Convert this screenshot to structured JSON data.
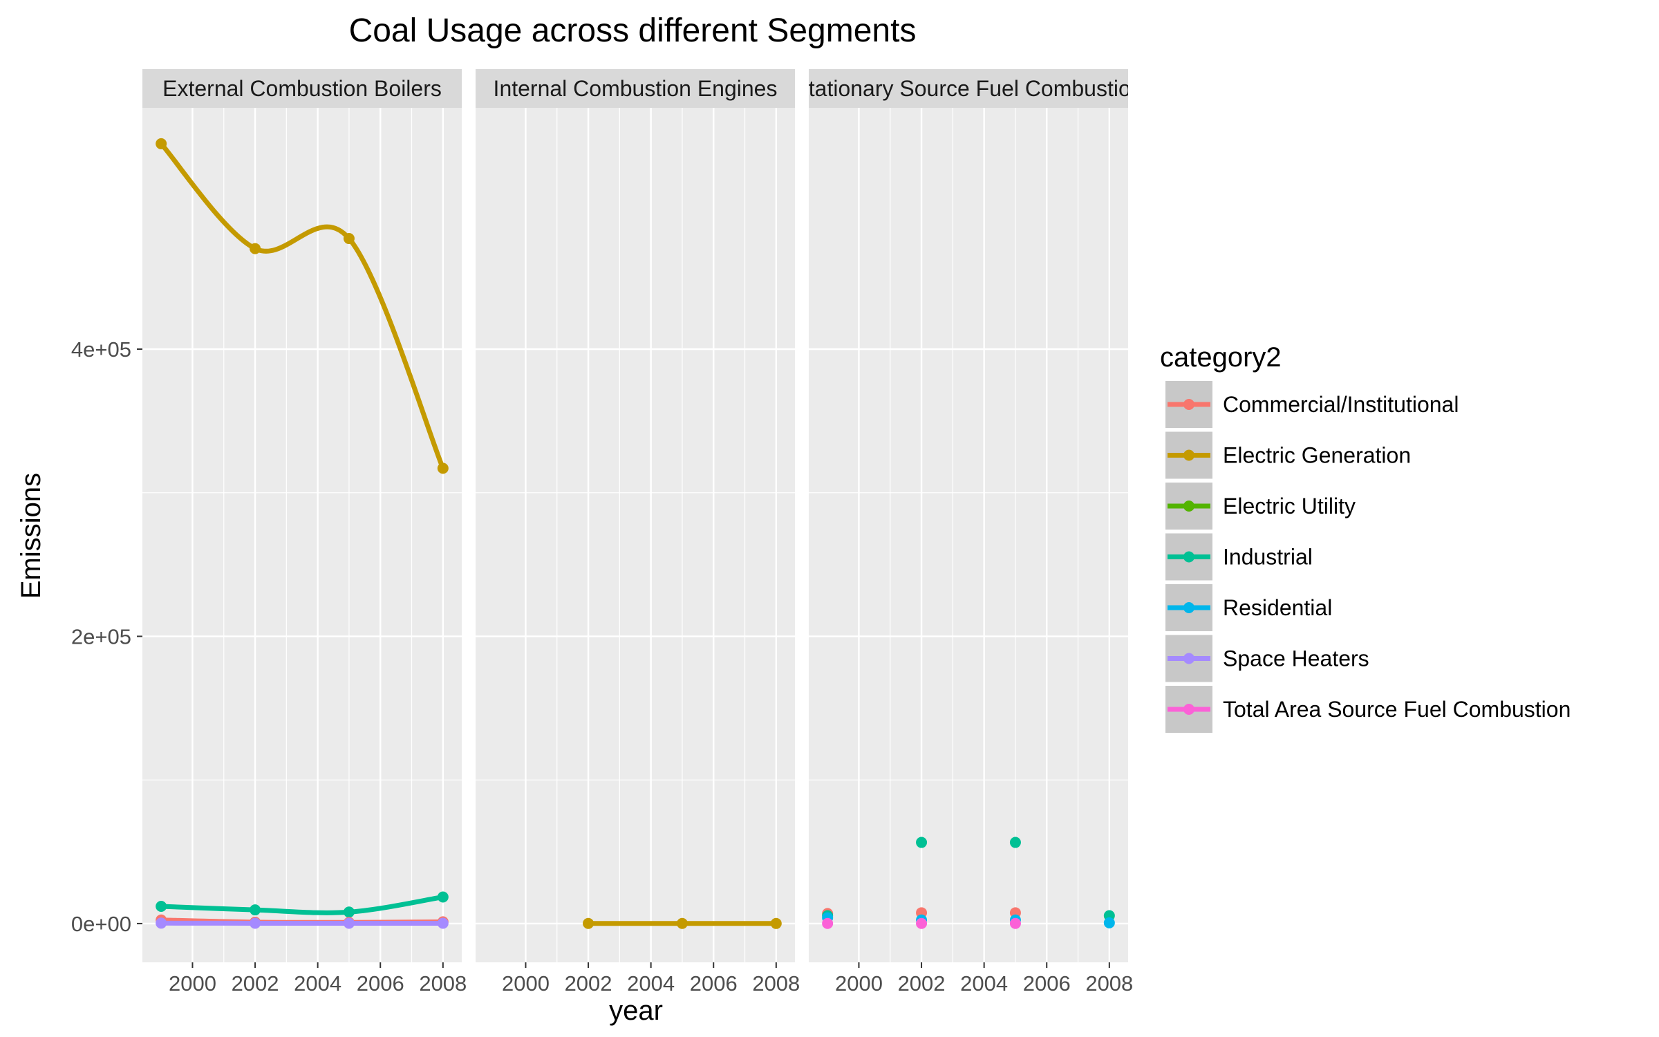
{
  "chart_data": {
    "type": "line",
    "title": "Coal Usage across different Segments",
    "xlabel": "year",
    "ylabel": "Emissions",
    "xlim": [
      1998.4,
      2008.6
    ],
    "ylim": [
      -27000,
      568000
    ],
    "xticks": [
      2000,
      2002,
      2004,
      2006,
      2008
    ],
    "yticks": [
      0,
      200000,
      400000
    ],
    "ytick_labels": [
      "0e+00",
      "2e+05",
      "4e+05"
    ],
    "grid": true,
    "legend_title": "category2",
    "legend_position": "right",
    "categories": [
      {
        "name": "Commercial/Institutional",
        "color": "#F8766D"
      },
      {
        "name": "Electric Generation",
        "color": "#C49A00"
      },
      {
        "name": "Electric Utility",
        "color": "#53B400"
      },
      {
        "name": "Industrial",
        "color": "#00C094"
      },
      {
        "name": "Residential",
        "color": "#00B6EB"
      },
      {
        "name": "Space Heaters",
        "color": "#A58AFF"
      },
      {
        "name": "Total Area Source Fuel Combustion",
        "color": "#FB61D7"
      }
    ],
    "panels": [
      {
        "strip": "External Combustion Boilers",
        "series": [
          {
            "name": "Electric Generation",
            "x": [
              1999,
              2002,
              2005,
              2008
            ],
            "y": [
              543000,
              470000,
              477000,
              317000
            ]
          },
          {
            "name": "Industrial",
            "x": [
              1999,
              2002,
              2005,
              2008
            ],
            "y": [
              12000,
              9500,
              8000,
              18500
            ]
          },
          {
            "name": "Commercial/Institutional",
            "x": [
              1999,
              2002,
              2005,
              2008
            ],
            "y": [
              2500,
              1000,
              800,
              1200
            ]
          },
          {
            "name": "Space Heaters",
            "x": [
              1999,
              2002,
              2005,
              2008
            ],
            "y": [
              300,
              200,
              200,
              200
            ]
          }
        ]
      },
      {
        "strip": "Internal Combustion Engines",
        "series": [
          {
            "name": "Electric Generation",
            "x": [
              2002,
              2005,
              2008
            ],
            "y": [
              100,
              80,
              60
            ]
          }
        ]
      },
      {
        "strip": "Stationary Source Fuel Combustion",
        "points_only": true,
        "series": [
          {
            "name": "Commercial/Institutional",
            "x": [
              1999,
              2002,
              2005
            ],
            "y": [
              7000,
              7500,
              7500
            ]
          },
          {
            "name": "Industrial",
            "x": [
              1999,
              2002,
              2005,
              2008
            ],
            "y": [
              5500,
              56500,
              56500,
              5500
            ]
          },
          {
            "name": "Residential",
            "x": [
              1999,
              2002,
              2005,
              2008
            ],
            "y": [
              4000,
              2500,
              2500,
              500
            ]
          },
          {
            "name": "Total Area Source Fuel Combustion",
            "x": [
              1999,
              2002,
              2005
            ],
            "y": [
              100,
              100,
              100
            ]
          }
        ]
      }
    ]
  }
}
